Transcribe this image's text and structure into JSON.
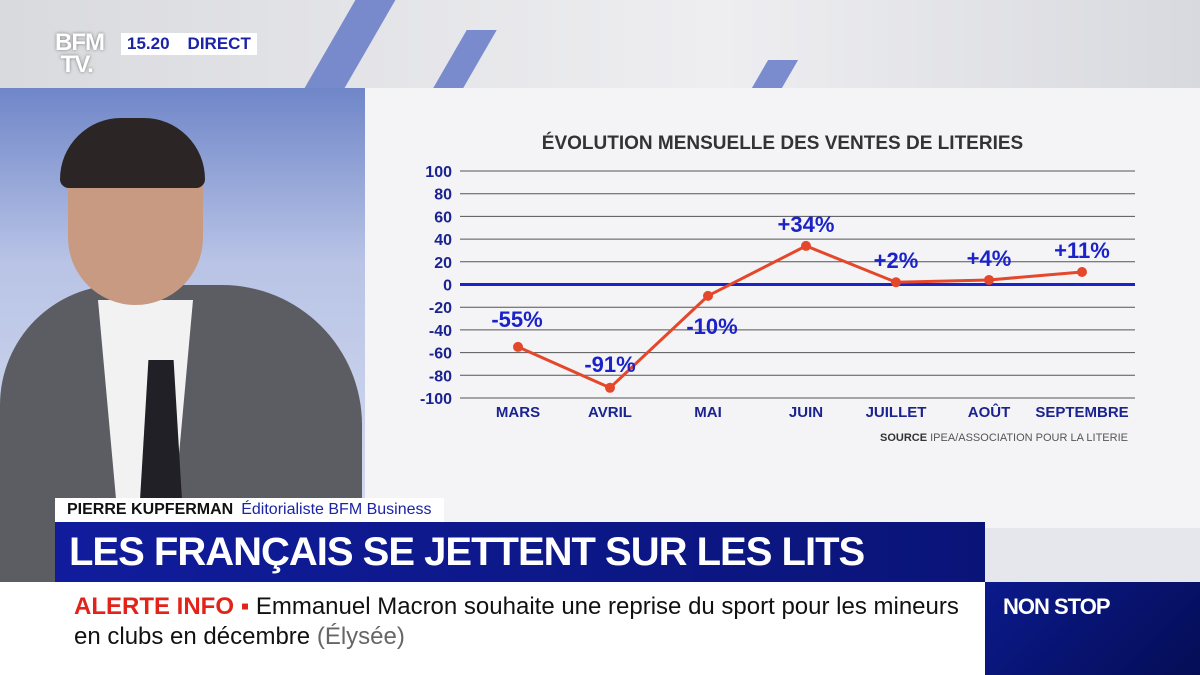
{
  "channel": {
    "logo": "BFM TV.",
    "time": "15.20",
    "live": "DIRECT"
  },
  "chart_data": {
    "type": "line",
    "title": "ÉVOLUTION MENSUELLE DES VENTES DE LITERIES",
    "categories": [
      "MARS",
      "AVRIL",
      "MAI",
      "JUIN",
      "JUILLET",
      "AOÛT",
      "SEPTEMBRE"
    ],
    "values": [
      -55,
      -91,
      -10,
      34,
      2,
      4,
      11
    ],
    "data_labels": [
      "-55%",
      "-91%",
      "-10%",
      "+34%",
      "+2%",
      "+4%",
      "+11%"
    ],
    "yticks": [
      100,
      80,
      60,
      40,
      20,
      0,
      -20,
      -40,
      -60,
      -80,
      -100
    ],
    "ylim": [
      -100,
      100
    ],
    "grid": true,
    "source_label": "SOURCE",
    "source": "IPEA/ASSOCIATION POUR LA LITERIE",
    "colors": {
      "line": "#e5472a",
      "labels": "#1b23c8",
      "zero": "#1b23c8"
    }
  },
  "lower_third": {
    "name": "PIERRE KUPFERMAN",
    "role": "Éditorialiste BFM Business",
    "headline": "LES FRANÇAIS SE JETTENT SUR LES LITS",
    "alert_label": "ALERTE INFO ▪",
    "alert_text": "Emmanuel Macron souhaite une reprise du sport pour les mineurs en clubs en décembre",
    "alert_source": "(Élysée)",
    "program": "NON STOP"
  }
}
